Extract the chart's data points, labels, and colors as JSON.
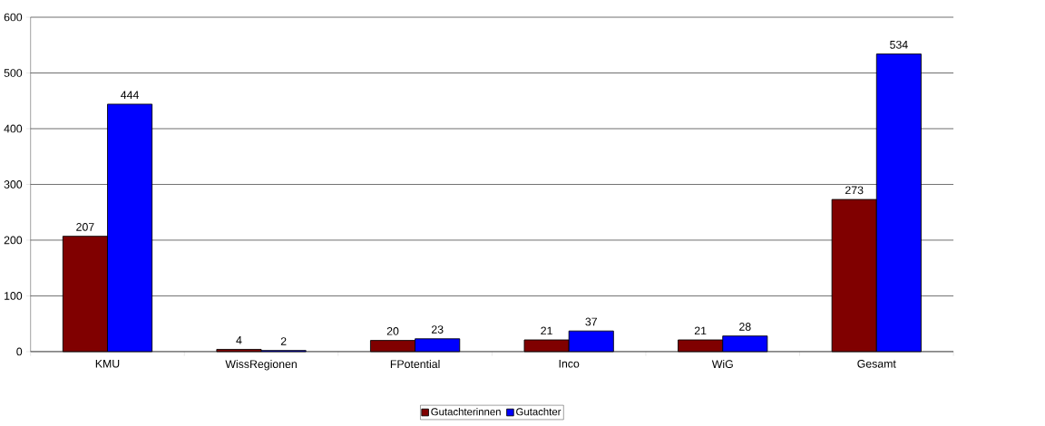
{
  "chart_data": {
    "type": "bar",
    "categories": [
      "KMU",
      "WissRegionen",
      "FPotential",
      "Inco",
      "WiG",
      "Gesamt"
    ],
    "series": [
      {
        "name": "Gutachterinnen",
        "color": "#800000",
        "values": [
          207,
          4,
          20,
          21,
          21,
          273
        ]
      },
      {
        "name": "Gutachter",
        "color": "#0000ff",
        "values": [
          444,
          2,
          23,
          37,
          28,
          534
        ]
      }
    ],
    "ylim": [
      0,
      600
    ],
    "yticks": [
      0,
      100,
      200,
      300,
      400,
      500,
      600
    ],
    "grid": "y",
    "legend": "bottom",
    "data_labels": true
  }
}
